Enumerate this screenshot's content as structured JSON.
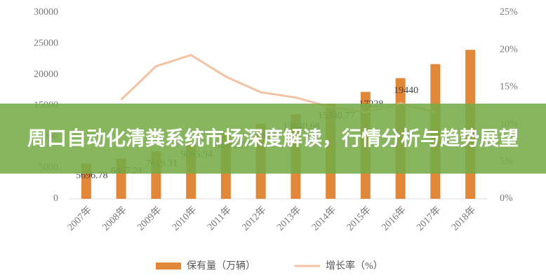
{
  "chart_data": {
    "type": "bar-line",
    "title": "周口自动化清粪系统市场深度解读，行情分析与趋势展望",
    "categories": [
      "2007年",
      "2008年",
      "2009年",
      "2010年",
      "2011年",
      "2012年",
      "2013年",
      "2014年",
      "2015年",
      "2016年",
      "2017年",
      "2018年"
    ],
    "series": [
      {
        "name": "保有量（万辆）",
        "color": "#e0873a",
        "values": [
          5696.78,
          6467.21,
          7619.31,
          9085.94,
          10578.77,
          12089,
          13640.68,
          15340.77,
          17228,
          19440,
          21700,
          24000
        ],
        "value_labels": [
          "5696.78",
          "6467.21",
          "7619.31",
          "9085.94",
          "10578.77",
          "12089",
          "13640.68",
          "15340.77",
          "17228",
          "19440",
          null,
          null
        ]
      },
      {
        "name": "增长率（%）",
        "color": "#f3c2a2",
        "axis": "y2",
        "values": [
          null,
          13.3,
          17.8,
          19.3,
          16.4,
          14.3,
          13.6,
          12.3,
          11.6,
          12.8,
          11.6,
          null
        ]
      }
    ],
    "ylim": [
      0,
      30000
    ],
    "yticks": [
      0,
      5000,
      10000,
      15000,
      20000,
      25000,
      30000
    ],
    "y2lim": [
      0,
      25
    ],
    "y2ticks": [
      {
        "value": 0,
        "label": "0%"
      },
      {
        "value": 5,
        "label": "5%"
      },
      {
        "value": 10,
        "label": "10%"
      },
      {
        "value": 15,
        "label": "15%"
      },
      {
        "value": 20,
        "label": "20%"
      },
      {
        "value": 25,
        "label": "25%"
      }
    ]
  }
}
